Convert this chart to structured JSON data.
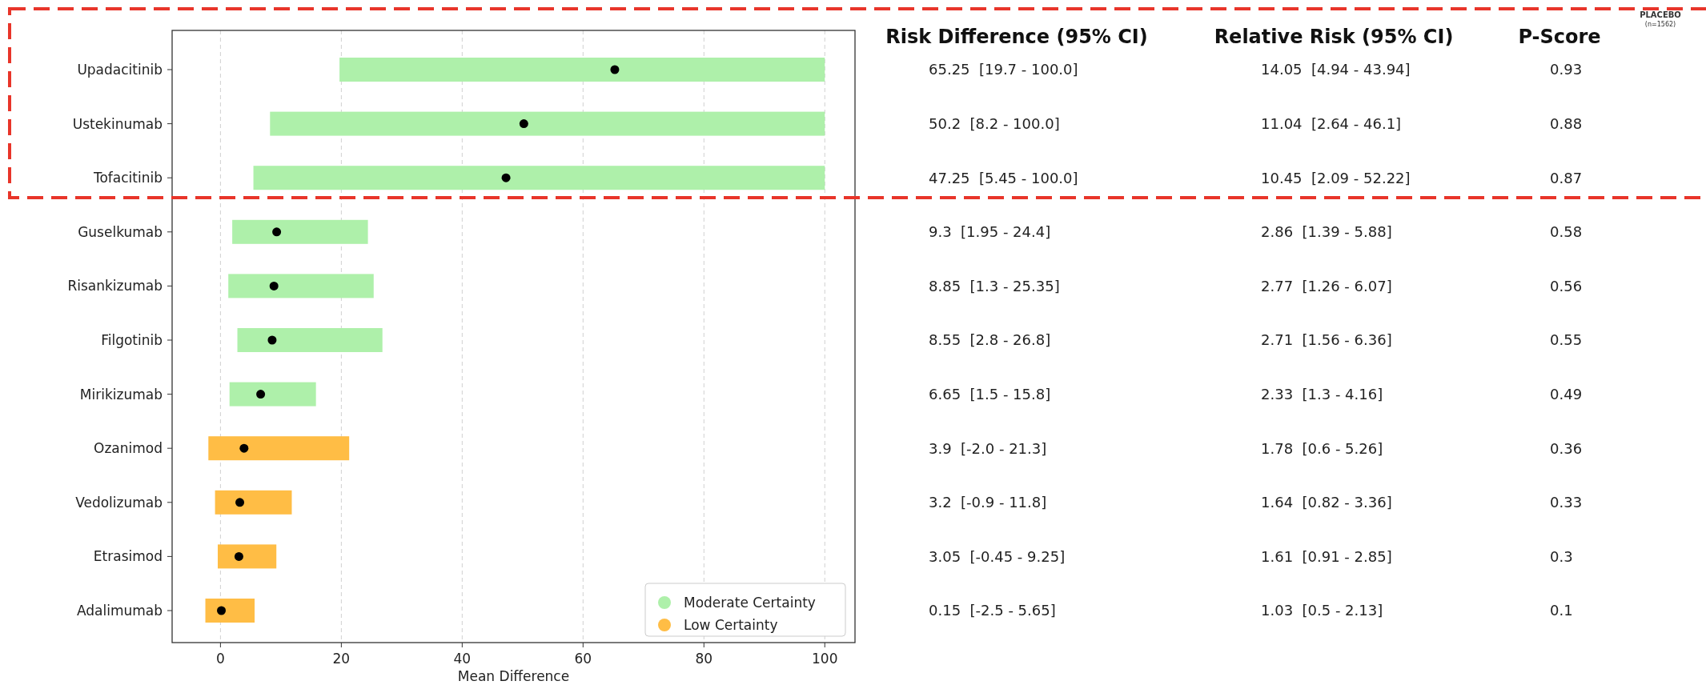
{
  "chart_data": {
    "type": "bar",
    "orientation": "horizontal",
    "xlabel": "Mean Difference",
    "categories": [
      "Upadacitinib",
      "Ustekinumab",
      "Tofacitinib",
      "Guselkumab",
      "Risankizumab",
      "Filgotinib",
      "Mirikizumab",
      "Ozanimod",
      "Vedolizumab",
      "Etrasimod",
      "Adalimumab"
    ],
    "series": [
      {
        "name": "Moderate Certainty",
        "color": "#aef0aa",
        "base": [
          19.7,
          8.2,
          5.45,
          1.95,
          1.3,
          2.8,
          1.5,
          null,
          null,
          null,
          null
        ],
        "values": [
          80.3,
          91.8,
          94.55,
          22.45,
          24.05,
          24.0,
          14.3,
          null,
          null,
          null,
          null
        ]
      },
      {
        "name": "Low Certainty",
        "color": "#ffbd45",
        "base": [
          null,
          null,
          null,
          null,
          null,
          null,
          null,
          -2.0,
          -0.9,
          -0.45,
          -2.5
        ],
        "values": [
          null,
          null,
          null,
          null,
          null,
          null,
          null,
          23.3,
          12.7,
          9.7,
          8.15
        ]
      },
      {
        "type": "scatter",
        "color": "#000000",
        "marker": "circle",
        "x": [
          "Upadacitinib",
          "Ustekinumab",
          "Tofacitinib",
          "Guselkumab",
          "Risankizumab",
          "Filgotinib",
          "Mirikizumab",
          "Ozanimod",
          "Vedolizumab",
          "Etrasimod",
          "Adalimumab"
        ],
        "values": [
          65.25,
          50.2,
          47.25,
          9.3,
          8.85,
          8.55,
          6.65,
          3.9,
          3.2,
          3.05,
          0.15
        ]
      }
    ],
    "xlim": [
      -8,
      105
    ],
    "xticks": [
      0,
      20,
      40,
      60,
      80,
      100
    ],
    "grid": "x",
    "legend": "bottom right",
    "annotations": [
      "Risk Difference (95% CI)",
      "Relative Risk (95% CI)",
      "P-Score",
      "65.25  [19.7 - 100.0]",
      "14.05  [4.94 - 43.94]",
      "0.93",
      "50.2  [8.2 - 100.0]",
      "11.04  [2.64 - 46.1]",
      "0.88",
      "47.25  [5.45 - 100.0]",
      "10.45  [2.09 - 52.22]",
      "0.87",
      "9.3  [1.95 - 24.4]",
      "2.86  [1.39 - 5.88]",
      "0.58",
      "8.85  [1.3 - 25.35]",
      "2.77  [1.26 - 6.07]",
      "0.56",
      "8.55  [2.8 - 26.8]",
      "2.71  [1.56 - 6.36]",
      "0.55",
      "6.65  [1.5 - 15.8]",
      "2.33  [1.3 - 4.16]",
      "0.49",
      "3.9  [-2.0 - 21.3]",
      "1.78  [0.6 - 5.26]",
      "0.36",
      "3.2  [-0.9 - 11.8]",
      "1.64  [0.82 - 3.36]",
      "0.33",
      "3.05  [-0.45 - 9.25]",
      "1.61  [0.91 - 2.85]",
      "0.3",
      "0.15  [-2.5 - 5.65]",
      "1.03  [0.5 - 2.13]",
      "0.1",
      "PLACEBO",
      "(n=1562)"
    ]
  }
}
